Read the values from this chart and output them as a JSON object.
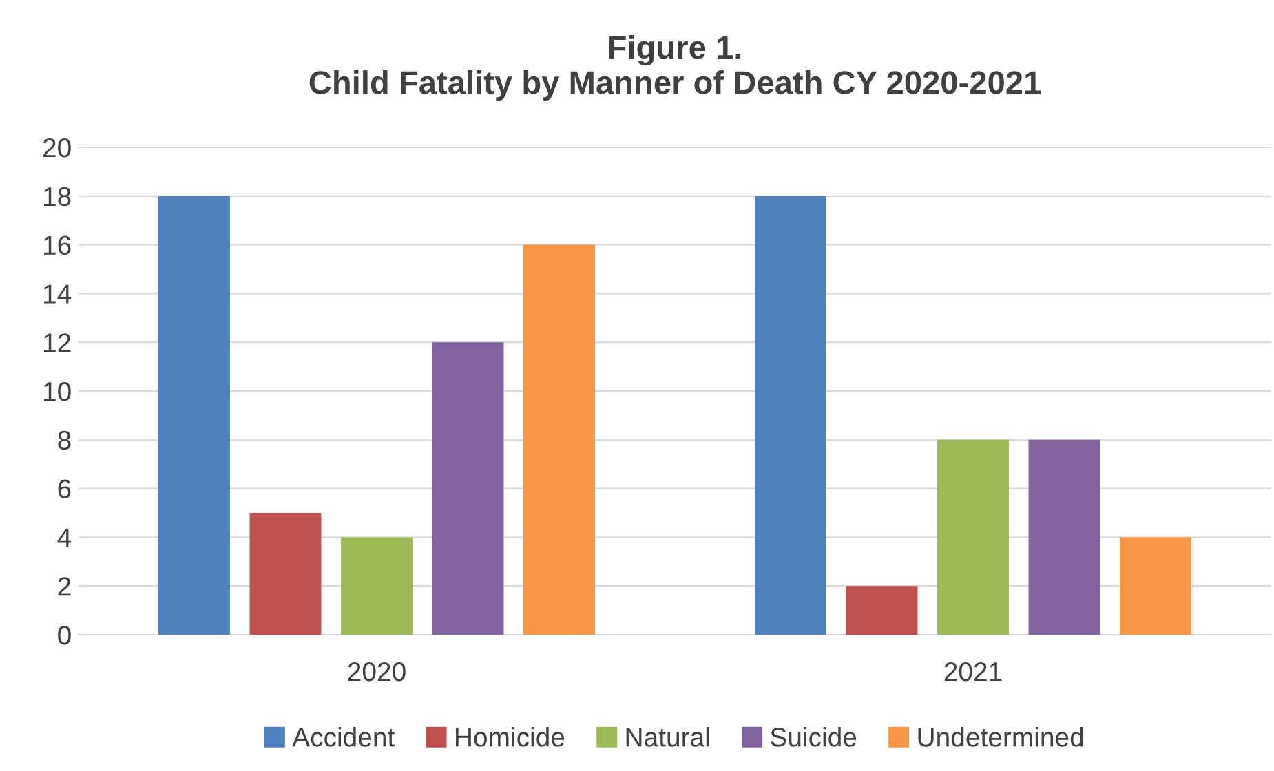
{
  "chart_data": {
    "type": "bar",
    "title": "Figure 1.\nChild Fatality by Manner of Death CY 2020-2021",
    "categories": [
      "2020",
      "2021"
    ],
    "series": [
      {
        "name": "Accident",
        "color": "#4f81bd",
        "values": [
          18,
          18
        ]
      },
      {
        "name": "Homicide",
        "color": "#c0504d",
        "values": [
          5,
          2
        ]
      },
      {
        "name": "Natural",
        "color": "#9bbb59",
        "values": [
          4,
          8
        ]
      },
      {
        "name": "Suicide",
        "color": "#8064a2",
        "values": [
          12,
          8
        ]
      },
      {
        "name": "Undetermined",
        "color": "#f79646",
        "values": [
          16,
          4
        ]
      }
    ],
    "ylim": [
      0,
      20
    ],
    "yticks": [
      0,
      2,
      4,
      6,
      8,
      10,
      12,
      14,
      16,
      18,
      20
    ],
    "grid": "y",
    "legend": "bottom"
  }
}
